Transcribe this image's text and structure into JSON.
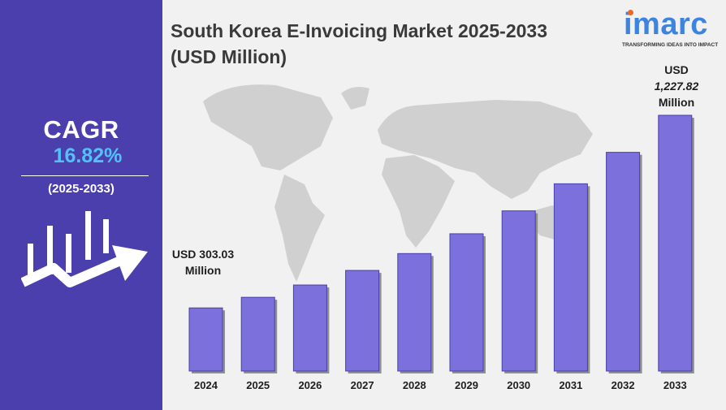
{
  "left_panel": {
    "cagr_label": "CAGR",
    "cagr_value": "16.82%",
    "period": "(2025-2033)"
  },
  "title": "South Korea E-Invoicing Market 2025-2033 (USD Million)",
  "logo": {
    "word": "imarc",
    "tagline": "TRANSFORMING IDEAS INTO IMPACT"
  },
  "annotations": {
    "first": {
      "line1": "USD 303.03",
      "line2": "Million"
    },
    "last": {
      "line1": "USD",
      "line2": "1,227.82",
      "line3": "Million"
    }
  },
  "colors": {
    "panel": "#4b3fae",
    "bar": "#7b70dc",
    "bar_edge": "#4a3fa8",
    "accent": "#4fc3f7"
  },
  "chart_data": {
    "type": "bar",
    "title": "South Korea E-Invoicing Market 2025-2033 (USD Million)",
    "categories": [
      "2024",
      "2025",
      "2026",
      "2027",
      "2028",
      "2029",
      "2030",
      "2031",
      "2032",
      "2033"
    ],
    "values": [
      303.03,
      354,
      413,
      483,
      564,
      659,
      769,
      899,
      1050,
      1227.82
    ],
    "ylim": [
      0,
      1300
    ],
    "xlabel": "",
    "ylabel": "",
    "grid": false
  }
}
